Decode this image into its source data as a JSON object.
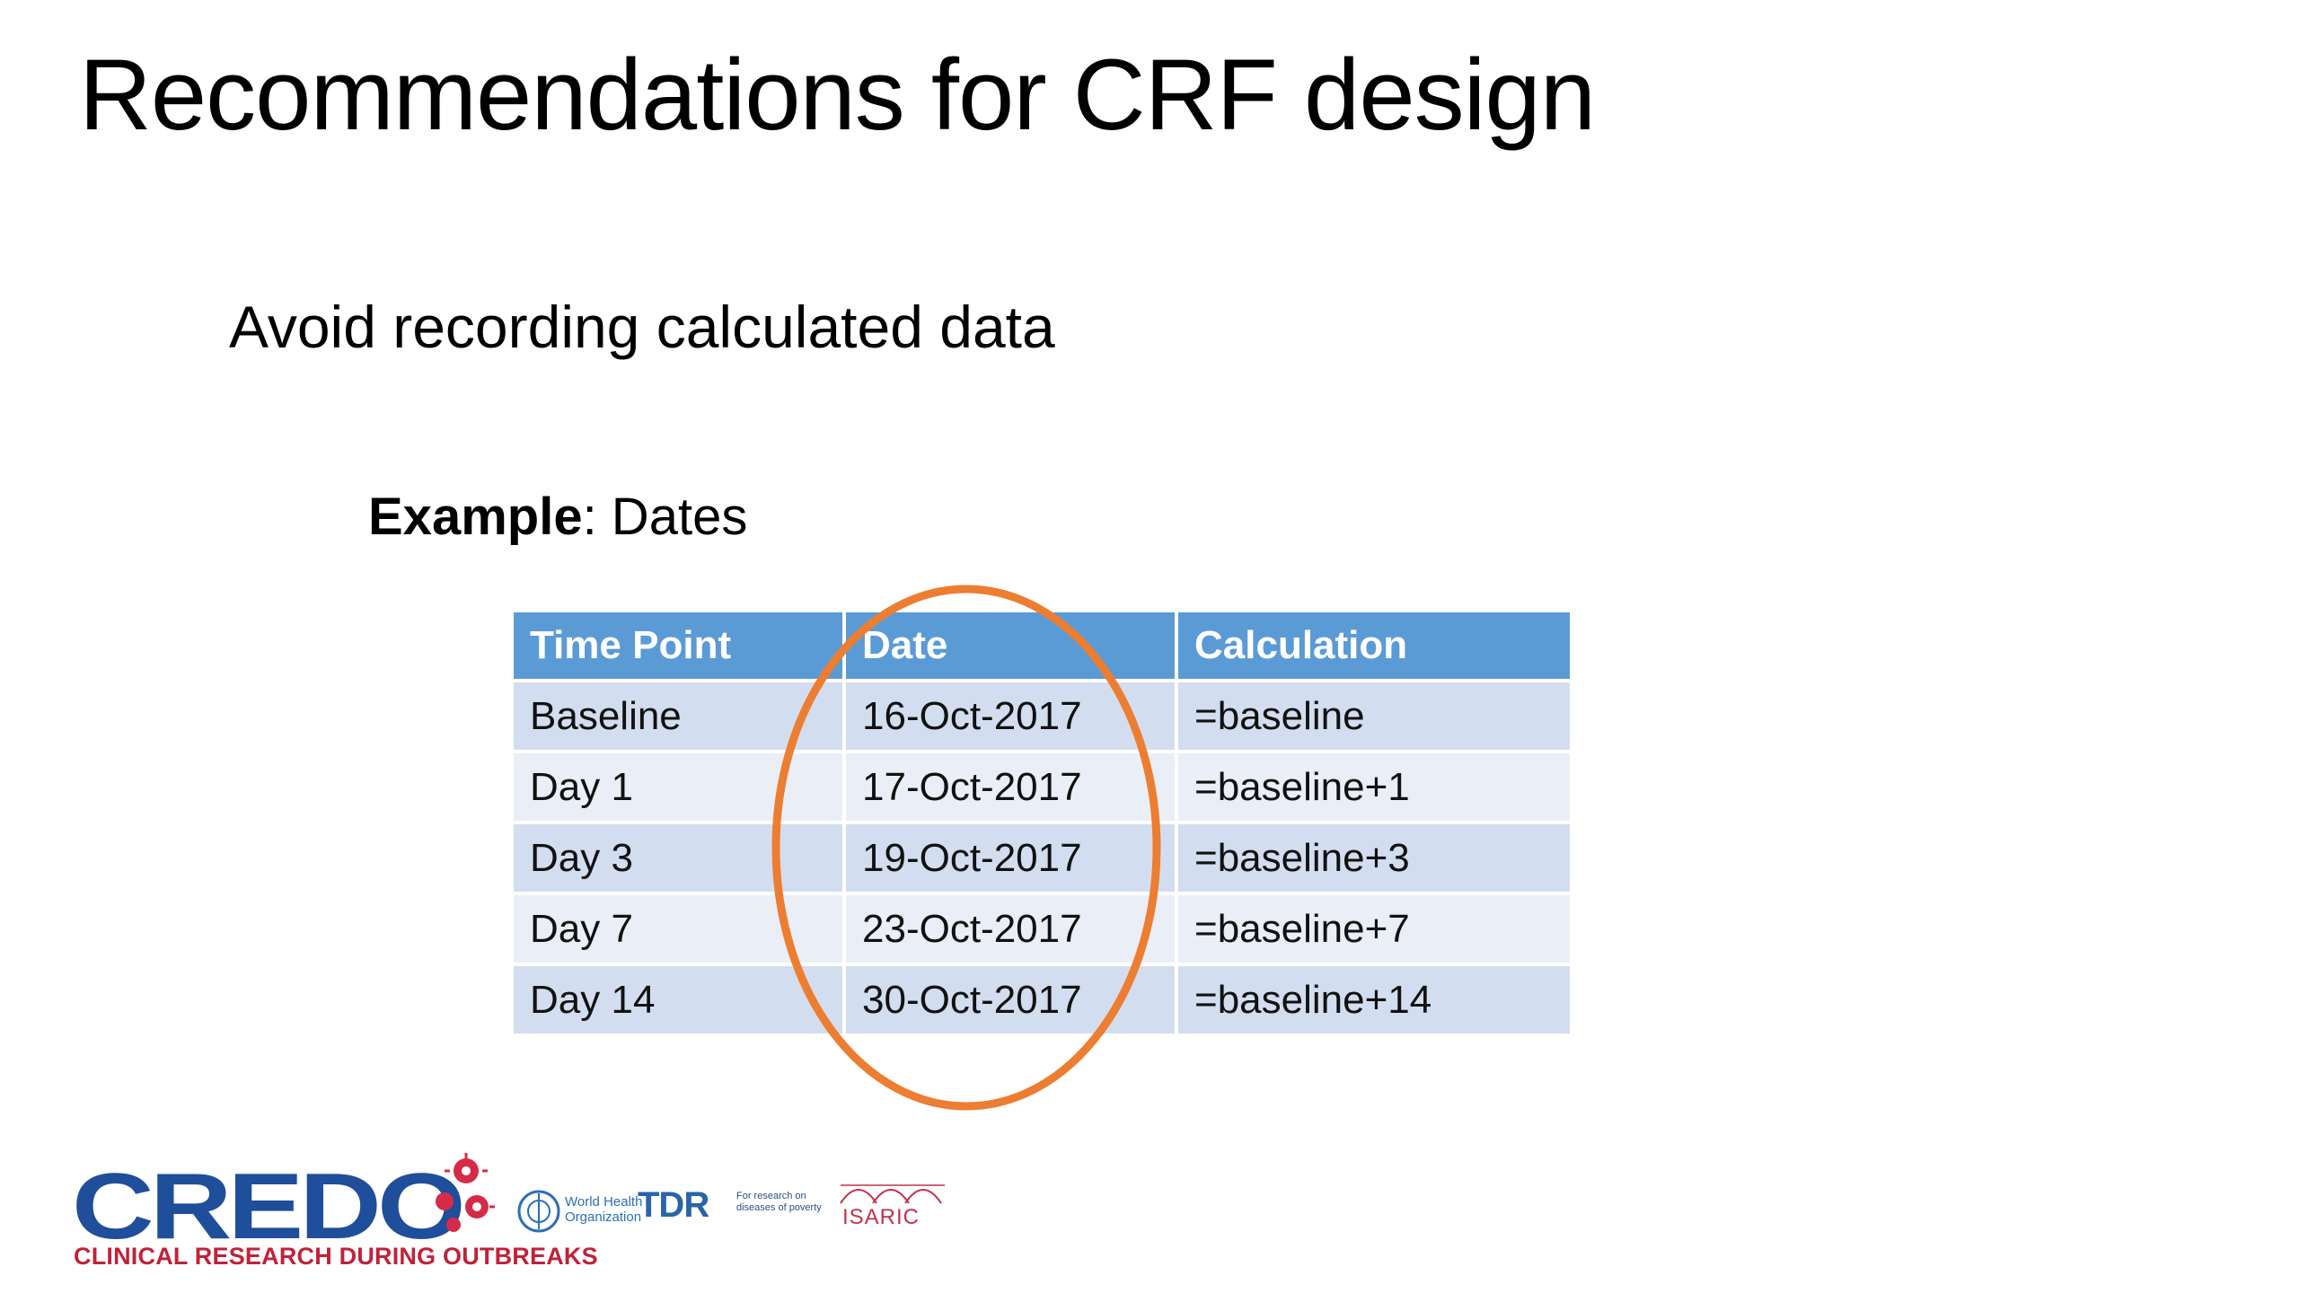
{
  "title": "Recommendations for CRF design",
  "subtitle": "Avoid recording calculated data",
  "example": {
    "label": "Example",
    "rest": ": Dates"
  },
  "table": {
    "headers": [
      "Time Point",
      "Date",
      "Calculation"
    ],
    "rows": [
      [
        "Baseline",
        "16-Oct-2017",
        "=baseline"
      ],
      [
        "Day 1",
        "17-Oct-2017",
        "=baseline+1"
      ],
      [
        "Day 3",
        "19-Oct-2017",
        "=baseline+3"
      ],
      [
        "Day 7",
        "23-Oct-2017",
        "=baseline+7"
      ],
      [
        "Day 14",
        "30-Oct-2017",
        "=baseline+14"
      ]
    ]
  },
  "colors": {
    "header": "#5b9bd5",
    "row_dark": "#d2deef",
    "row_light": "#eaeff7",
    "highlight": "#ed7d31"
  },
  "logos": {
    "credo": "CREDO",
    "credo_tagline": "CLINICAL RESEARCH DURING OUTBREAKS",
    "who_line1": "World Health",
    "who_line2": "Organization",
    "tdr": "TDR",
    "tdr_line1": "For research on",
    "tdr_line2": "diseases of poverty",
    "isaric": "ISARIC"
  }
}
